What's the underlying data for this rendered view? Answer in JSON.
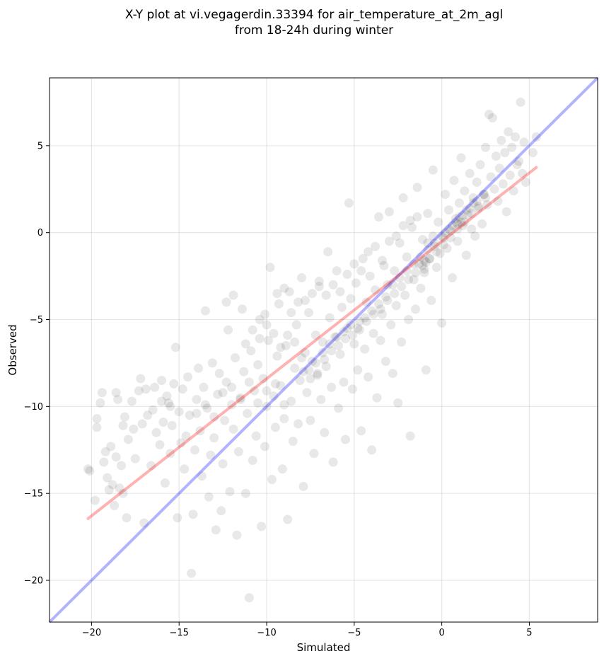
{
  "chart_data": {
    "type": "scatter",
    "title": "X-Y plot at vi.vegagerdin.33394 for air_temperature_at_2m_agl",
    "subtitle": "from 18-24h during winter",
    "xlabel": "Simulated",
    "ylabel": "Observed",
    "xlim": [
      -22.4,
      8.9
    ],
    "ylim": [
      -22.4,
      8.9
    ],
    "xticks": [
      -20,
      -15,
      -10,
      -5,
      0,
      5
    ],
    "yticks": [
      -20,
      -15,
      -10,
      -5,
      0,
      5
    ],
    "tick_labels": [
      "−20",
      "−15",
      "−10",
      "−5",
      "0",
      "5"
    ],
    "grid": true,
    "colors": {
      "points": "#000000",
      "identity_line": "#0000ff",
      "fit_line": "#ff0000"
    },
    "identity_line": {
      "x": [
        -22.4,
        8.9
      ],
      "y": [
        -22.4,
        8.9
      ]
    },
    "fit_line": {
      "x": [
        -20.2,
        5.4
      ],
      "y": [
        -16.45,
        3.75
      ]
    },
    "points": [
      [
        -20.2,
        -13.6
      ],
      [
        -20.1,
        -13.7
      ],
      [
        -19.8,
        -15.4
      ],
      [
        -19.7,
        -11.2
      ],
      [
        -19.7,
        -10.7
      ],
      [
        -19.5,
        -9.8
      ],
      [
        -19.4,
        -9.2
      ],
      [
        -19.3,
        -13.2
      ],
      [
        -19.2,
        -12.6
      ],
      [
        -19.1,
        -14.1
      ],
      [
        -19.0,
        -14.8
      ],
      [
        -18.9,
        -12.3
      ],
      [
        -18.8,
        -14.5
      ],
      [
        -18.7,
        -15.7
      ],
      [
        -18.6,
        -12.9
      ],
      [
        -18.6,
        -9.2
      ],
      [
        -18.5,
        -9.6
      ],
      [
        -18.4,
        -14.7
      ],
      [
        -18.3,
        -13.4
      ],
      [
        -18.2,
        -11.1
      ],
      [
        -18.2,
        -15.0
      ],
      [
        -18.1,
        -10.6
      ],
      [
        -18.0,
        -16.4
      ],
      [
        -17.9,
        -11.9
      ],
      [
        -17.7,
        -9.7
      ],
      [
        -17.6,
        -11.3
      ],
      [
        -17.5,
        -13.0
      ],
      [
        -17.3,
        -9.1
      ],
      [
        -17.2,
        -8.4
      ],
      [
        -17.1,
        -11.0
      ],
      [
        -17.0,
        -16.7
      ],
      [
        -16.9,
        -9.0
      ],
      [
        -16.8,
        -10.5
      ],
      [
        -16.6,
        -13.4
      ],
      [
        -16.5,
        -10.2
      ],
      [
        -16.4,
        -8.9
      ],
      [
        -16.3,
        -11.5
      ],
      [
        -16.1,
        -12.2
      ],
      [
        -16.0,
        -8.5
      ],
      [
        -15.9,
        -10.9
      ],
      [
        -15.8,
        -14.4
      ],
      [
        -15.7,
        -9.4
      ],
      [
        -15.6,
        -9.8
      ],
      [
        -15.5,
        -12.7
      ],
      [
        -15.4,
        -11.1
      ],
      [
        -15.3,
        -8.7
      ],
      [
        -15.2,
        -6.6
      ],
      [
        -15.1,
        -16.4
      ],
      [
        -15.0,
        -10.3
      ],
      [
        -14.9,
        -12.1
      ],
      [
        -14.8,
        -9.0
      ],
      [
        -14.7,
        -13.6
      ],
      [
        -14.6,
        -11.7
      ],
      [
        -14.5,
        -8.3
      ],
      [
        -14.4,
        -10.5
      ],
      [
        -14.3,
        -19.6
      ],
      [
        -14.2,
        -16.2
      ],
      [
        -14.1,
        -12.5
      ],
      [
        -14.0,
        -9.6
      ],
      [
        -13.9,
        -7.8
      ],
      [
        -13.8,
        -11.4
      ],
      [
        -13.7,
        -14.0
      ],
      [
        -13.6,
        -8.9
      ],
      [
        -13.5,
        -4.5
      ],
      [
        -13.4,
        -10.1
      ],
      [
        -13.3,
        -15.2
      ],
      [
        -13.2,
        -12.8
      ],
      [
        -13.1,
        -7.5
      ],
      [
        -13.0,
        -11.8
      ],
      [
        -12.9,
        -17.1
      ],
      [
        -12.8,
        -9.3
      ],
      [
        -12.7,
        -8.1
      ],
      [
        -12.6,
        -16.0
      ],
      [
        -12.5,
        -13.3
      ],
      [
        -12.4,
        -10.8
      ],
      [
        -12.3,
        -8.6
      ],
      [
        -12.2,
        -5.6
      ],
      [
        -12.1,
        -14.9
      ],
      [
        -12.0,
        -9.9
      ],
      [
        -11.9,
        -11.3
      ],
      [
        -11.8,
        -7.2
      ],
      [
        -11.7,
        -17.4
      ],
      [
        -11.6,
        -12.6
      ],
      [
        -11.5,
        -9.5
      ],
      [
        -11.4,
        -4.4
      ],
      [
        -11.3,
        -8.0
      ],
      [
        -11.2,
        -15.0
      ],
      [
        -11.1,
        -10.4
      ],
      [
        -11.0,
        -21.0
      ],
      [
        -10.9,
        -6.8
      ],
      [
        -10.8,
        -13.1
      ],
      [
        -10.7,
        -9.1
      ],
      [
        -10.6,
        -11.7
      ],
      [
        -10.5,
        -7.6
      ],
      [
        -10.4,
        -5.0
      ],
      [
        -10.3,
        -16.9
      ],
      [
        -10.2,
        -8.4
      ],
      [
        -10.1,
        -12.3
      ],
      [
        -10.0,
        -10.0
      ],
      [
        -9.9,
        -6.2
      ],
      [
        -9.8,
        -2.0
      ],
      [
        -9.7,
        -14.2
      ],
      [
        -9.6,
        -9.4
      ],
      [
        -9.5,
        -11.2
      ],
      [
        -9.4,
        -7.1
      ],
      [
        -9.3,
        -4.1
      ],
      [
        -9.2,
        -8.8
      ],
      [
        -9.1,
        -13.6
      ],
      [
        -9.0,
        -10.7
      ],
      [
        -8.9,
        -6.5
      ],
      [
        -8.8,
        -16.5
      ],
      [
        -8.7,
        -3.4
      ],
      [
        -8.6,
        -9.7
      ],
      [
        -8.5,
        -12.0
      ],
      [
        -8.4,
        -7.8
      ],
      [
        -8.3,
        -5.3
      ],
      [
        -8.2,
        -11.0
      ],
      [
        -8.1,
        -8.5
      ],
      [
        -8.0,
        -2.6
      ],
      [
        -7.9,
        -14.6
      ],
      [
        -7.8,
        -6.9
      ],
      [
        -7.7,
        -9.2
      ],
      [
        -7.6,
        -4.6
      ],
      [
        -7.5,
        -10.8
      ],
      [
        -7.4,
        -7.4
      ],
      [
        -7.3,
        -12.7
      ],
      [
        -7.2,
        -5.9
      ],
      [
        -7.1,
        -8.2
      ],
      [
        -7.0,
        -3.1
      ],
      [
        -6.9,
        -9.6
      ],
      [
        -6.8,
        -6.3
      ],
      [
        -6.7,
        -11.5
      ],
      [
        -6.6,
        -7.7
      ],
      [
        -6.5,
        -1.1
      ],
      [
        -6.4,
        -4.9
      ],
      [
        -6.3,
        -8.9
      ],
      [
        -6.2,
        -13.2
      ],
      [
        -6.1,
        -6.0
      ],
      [
        -6.0,
        -2.2
      ],
      [
        -5.9,
        -10.1
      ],
      [
        -5.8,
        -7.0
      ],
      [
        -5.7,
        -4.3
      ],
      [
        -5.6,
        -8.6
      ],
      [
        -5.5,
        -11.9
      ],
      [
        -5.4,
        -5.5
      ],
      [
        -5.3,
        1.7
      ],
      [
        -5.2,
        -3.8
      ],
      [
        -5.1,
        -9.0
      ],
      [
        -5.0,
        -6.4
      ],
      [
        -4.9,
        -2.9
      ],
      [
        -4.8,
        -7.9
      ],
      [
        -4.7,
        -5.1
      ],
      [
        -4.6,
        -11.4
      ],
      [
        -4.5,
        -1.5
      ],
      [
        -4.4,
        -6.7
      ],
      [
        -4.3,
        -4.0
      ],
      [
        -4.2,
        -8.3
      ],
      [
        -4.1,
        -2.5
      ],
      [
        -4.0,
        -12.5
      ],
      [
        -3.9,
        -5.8
      ],
      [
        -3.8,
        -3.3
      ],
      [
        -3.7,
        -9.5
      ],
      [
        -3.6,
        0.9
      ],
      [
        -3.5,
        -6.2
      ],
      [
        -3.4,
        -4.7
      ],
      [
        -3.3,
        -1.9
      ],
      [
        -3.2,
        -7.4
      ],
      [
        -3.1,
        -3.0
      ],
      [
        -3.0,
        1.2
      ],
      [
        -2.9,
        -5.3
      ],
      [
        -2.8,
        -8.1
      ],
      [
        -2.7,
        -2.2
      ],
      [
        -2.6,
        -4.2
      ],
      [
        -2.5,
        -9.8
      ],
      [
        -2.4,
        -0.6
      ],
      [
        -2.3,
        -6.3
      ],
      [
        -2.2,
        2.0
      ],
      [
        -2.1,
        -3.6
      ],
      [
        -2.0,
        -1.4
      ],
      [
        -1.9,
        -5.0
      ],
      [
        -1.8,
        -11.7
      ],
      [
        -1.7,
        0.3
      ],
      [
        -1.6,
        -2.7
      ],
      [
        -1.5,
        -4.4
      ],
      [
        -1.4,
        2.6
      ],
      [
        -1.3,
        -1.8
      ],
      [
        -1.2,
        -3.2
      ],
      [
        -1.1,
        -0.4
      ],
      [
        -1.0,
        -2.3
      ],
      [
        -0.9,
        -7.9
      ],
      [
        -0.8,
        1.1
      ],
      [
        -0.7,
        -1.5
      ],
      [
        -0.6,
        -3.9
      ],
      [
        -0.5,
        3.6
      ],
      [
        -0.4,
        -0.8
      ],
      [
        -0.3,
        -2.0
      ],
      [
        -0.2,
        0.6
      ],
      [
        -0.1,
        -1.2
      ],
      [
        0.0,
        -5.2
      ],
      [
        0.1,
        -0.3
      ],
      [
        0.2,
        2.2
      ],
      [
        0.3,
        -0.9
      ],
      [
        0.4,
        1.3
      ],
      [
        0.5,
        0.1
      ],
      [
        0.6,
        -2.6
      ],
      [
        0.7,
        3.0
      ],
      [
        0.8,
        0.8
      ],
      [
        0.9,
        -0.5
      ],
      [
        1.0,
        1.7
      ],
      [
        1.1,
        4.3
      ],
      [
        1.2,
        0.4
      ],
      [
        1.3,
        2.4
      ],
      [
        1.4,
        -1.3
      ],
      [
        1.5,
        1.0
      ],
      [
        1.6,
        3.4
      ],
      [
        1.7,
        0.2
      ],
      [
        1.8,
        2.0
      ],
      [
        1.9,
        -0.2
      ],
      [
        2.0,
        2.9
      ],
      [
        2.1,
        1.4
      ],
      [
        2.2,
        3.9
      ],
      [
        2.3,
        0.5
      ],
      [
        2.4,
        2.2
      ],
      [
        2.5,
        4.9
      ],
      [
        2.6,
        1.6
      ],
      [
        2.7,
        6.8
      ],
      [
        2.8,
        3.2
      ],
      [
        2.9,
        6.6
      ],
      [
        3.0,
        2.5
      ],
      [
        3.1,
        4.4
      ],
      [
        3.2,
        1.8
      ],
      [
        3.3,
        3.7
      ],
      [
        3.4,
        5.3
      ],
      [
        3.5,
        2.8
      ],
      [
        3.6,
        4.6
      ],
      [
        3.7,
        1.2
      ],
      [
        3.8,
        5.8
      ],
      [
        3.9,
        3.3
      ],
      [
        4.0,
        4.9
      ],
      [
        4.1,
        2.4
      ],
      [
        4.2,
        5.5
      ],
      [
        4.3,
        3.9
      ],
      [
        4.4,
        4.1
      ],
      [
        4.5,
        7.5
      ],
      [
        4.6,
        3.4
      ],
      [
        4.7,
        5.2
      ],
      [
        4.8,
        2.9
      ],
      [
        5.2,
        4.6
      ],
      [
        5.4,
        5.5
      ],
      [
        -9.0,
        -3.2
      ],
      [
        -8.6,
        -4.6
      ],
      [
        -8.2,
        -4.0
      ],
      [
        -7.8,
        -3.9
      ],
      [
        -7.4,
        -3.5
      ],
      [
        -7.0,
        -2.8
      ],
      [
        -6.6,
        -3.6
      ],
      [
        -6.2,
        -3.0
      ],
      [
        -5.8,
        -3.4
      ],
      [
        -5.4,
        -2.4
      ],
      [
        -5.0,
        -1.8
      ],
      [
        -4.6,
        -2.2
      ],
      [
        -4.2,
        -1.1
      ],
      [
        -3.8,
        -0.8
      ],
      [
        -3.4,
        -1.6
      ],
      [
        -3.0,
        -0.5
      ],
      [
        -2.6,
        -0.2
      ],
      [
        -2.2,
        0.4
      ],
      [
        -1.8,
        0.7
      ],
      [
        -1.4,
        0.9
      ],
      [
        -8.0,
        -7.2
      ],
      [
        -7.6,
        -7.9
      ],
      [
        -7.2,
        -7.5
      ],
      [
        -6.8,
        -6.9
      ],
      [
        -6.4,
        -6.4
      ],
      [
        -6.0,
        -6.0
      ],
      [
        -5.6,
        -5.7
      ],
      [
        -5.2,
        -5.3
      ],
      [
        -4.8,
        -5.5
      ],
      [
        -4.4,
        -4.9
      ],
      [
        -4.0,
        -4.5
      ],
      [
        -3.6,
        -4.1
      ],
      [
        -3.2,
        -3.7
      ],
      [
        -2.8,
        -3.0
      ],
      [
        -2.4,
        -2.6
      ],
      [
        -2.0,
        -2.2
      ],
      [
        -1.6,
        -1.8
      ],
      [
        -1.2,
        -1.4
      ],
      [
        -0.8,
        -1.0
      ],
      [
        -0.4,
        -0.6
      ],
      [
        0.0,
        -0.2
      ],
      [
        0.4,
        0.2
      ],
      [
        0.8,
        0.6
      ],
      [
        1.2,
        1.0
      ],
      [
        1.6,
        1.4
      ],
      [
        2.0,
        1.8
      ],
      [
        2.4,
        2.2
      ],
      [
        -7.9,
        -8.0
      ],
      [
        -7.5,
        -8.4
      ],
      [
        -7.1,
        -8.1
      ],
      [
        -6.7,
        -7.3
      ],
      [
        -6.3,
        -6.8
      ],
      [
        -5.9,
        -6.5
      ],
      [
        -5.5,
        -6.1
      ],
      [
        -5.1,
        -5.9
      ],
      [
        -4.7,
        -5.6
      ],
      [
        -4.3,
        -5.1
      ],
      [
        -3.9,
        -4.7
      ],
      [
        -3.5,
        -4.4
      ],
      [
        -3.1,
        -3.9
      ],
      [
        -2.7,
        -3.5
      ],
      [
        -2.3,
        -3.1
      ],
      [
        -1.9,
        -2.7
      ],
      [
        -1.5,
        -2.3
      ],
      [
        -1.1,
        -1.9
      ],
      [
        -0.7,
        -1.5
      ],
      [
        -0.3,
        -1.1
      ],
      [
        0.1,
        -0.7
      ],
      [
        0.5,
        -0.3
      ],
      [
        0.9,
        0.2
      ],
      [
        1.3,
        0.6
      ],
      [
        1.7,
        1.1
      ],
      [
        2.1,
        1.5
      ],
      [
        2.5,
        2.0
      ],
      [
        -1.0,
        -2.1
      ],
      [
        -0.9,
        -1.7
      ],
      [
        -0.5,
        -0.2
      ],
      [
        0.9,
        0.5
      ],
      [
        1.0,
        0.9
      ],
      [
        1.1,
        0.6
      ],
      [
        -1.0,
        -1.6
      ],
      [
        -0.8,
        -0.6
      ],
      [
        0.2,
        0.0
      ],
      [
        0.6,
        0.4
      ],
      [
        1.4,
        1.3
      ],
      [
        1.8,
        1.7
      ],
      [
        -12.5,
        -9.2
      ],
      [
        -12.0,
        -8.9
      ],
      [
        -11.5,
        -9.6
      ],
      [
        -11.0,
        -8.6
      ],
      [
        -10.5,
        -9.8
      ],
      [
        -10.0,
        -9.1
      ],
      [
        -9.5,
        -8.7
      ],
      [
        -9.0,
        -9.9
      ],
      [
        -14.0,
        -10.4
      ],
      [
        -13.5,
        -9.9
      ],
      [
        -13.0,
        -10.6
      ],
      [
        -16.0,
        -9.7
      ],
      [
        -15.5,
        -10.0
      ],
      [
        -11.2,
        -6.4
      ],
      [
        -10.8,
        -5.6
      ],
      [
        -10.4,
        -6.1
      ],
      [
        -10.0,
        -5.3
      ],
      [
        -9.6,
        -5.8
      ],
      [
        -9.2,
        -6.6
      ],
      [
        -8.8,
        -5.9
      ],
      [
        -8.4,
        -6.3
      ],
      [
        -12.3,
        -4.0
      ],
      [
        -11.9,
        -3.6
      ],
      [
        -9.4,
        -3.5
      ],
      [
        -10.1,
        -4.7
      ]
    ]
  }
}
